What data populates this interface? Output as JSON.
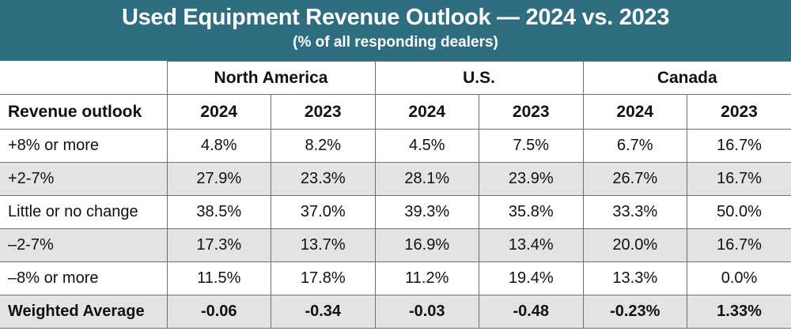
{
  "chart_data": {
    "type": "table",
    "title": "Used Equipment Revenue Outlook — 2024 vs. 2023",
    "subtitle": "(% of all responding dealers)",
    "regions": [
      "North America",
      "U.S.",
      "Canada"
    ],
    "row_header": "Revenue outlook",
    "years": [
      "2024",
      "2023",
      "2024",
      "2023",
      "2024",
      "2023"
    ],
    "rows": [
      {
        "label": "+8% or more",
        "values": [
          "4.8%",
          "8.2%",
          "4.5%",
          "7.5%",
          "6.7%",
          "16.7%"
        ]
      },
      {
        "label": "+2-7%",
        "values": [
          "27.9%",
          "23.3%",
          "28.1%",
          "23.9%",
          "26.7%",
          "16.7%"
        ]
      },
      {
        "label": "Little or no change",
        "values": [
          "38.5%",
          "37.0%",
          "39.3%",
          "35.8%",
          "33.3%",
          "50.0%"
        ]
      },
      {
        "label": "–2-7%",
        "values": [
          "17.3%",
          "13.7%",
          "16.9%",
          "13.4%",
          "20.0%",
          "16.7%"
        ]
      },
      {
        "label": "–8% or more",
        "values": [
          "11.5%",
          "17.8%",
          "11.2%",
          "19.4%",
          "13.3%",
          "0.0%"
        ]
      },
      {
        "label": "Weighted Average",
        "values": [
          "-0.06",
          "-0.34",
          "-0.03",
          "-0.48",
          "-0.23%",
          "1.33%"
        ]
      }
    ]
  }
}
